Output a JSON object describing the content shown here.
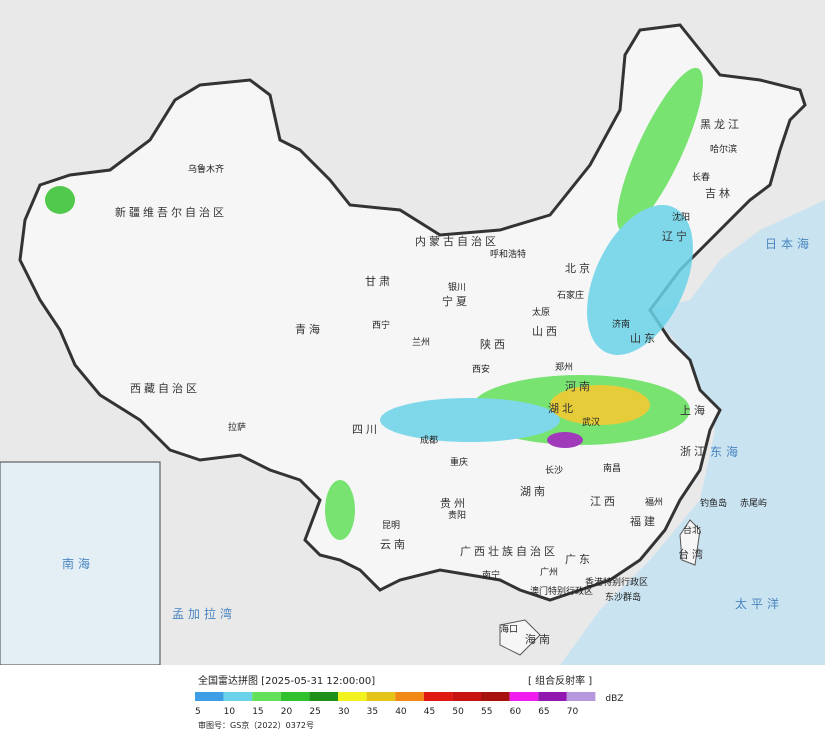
{
  "header": {
    "title": "全国雷达拼图 [2025-05-31 12:00:00]",
    "product": "[ 组合反射率 ]"
  },
  "legend": {
    "unit": "dBZ",
    "ticks": [
      5,
      10,
      15,
      20,
      25,
      30,
      35,
      40,
      45,
      50,
      55,
      60,
      65,
      70
    ],
    "colors": [
      "#3d9ee6",
      "#6ad2e8",
      "#62e05a",
      "#32c12e",
      "#1f8f1c",
      "#f2f21e",
      "#e4c418",
      "#f08a14",
      "#e01a12",
      "#c81410",
      "#a8120e",
      "#f01cf0",
      "#9018b0",
      "#b898dc"
    ]
  },
  "footer": {
    "approval": "审图号：GS京（2022）0372号"
  },
  "map": {
    "labels": [
      "乌鲁木齐",
      "新疆维吾尔自治区",
      "西藏自治区",
      "拉萨",
      "青海",
      "西宁",
      "甘肃",
      "内蒙古自治区",
      "呼和浩特",
      "北京",
      "黑龙江",
      "哈尔滨",
      "吉林",
      "长春",
      "辽宁",
      "沈阳",
      "宁夏",
      "银川",
      "兰州",
      "山西",
      "太原",
      "石家庄",
      "济南",
      "山东",
      "陕西",
      "西安",
      "郑州",
      "河南",
      "四川",
      "成都",
      "重庆",
      "湖北",
      "武汉",
      "上海",
      "浙江",
      "湖南",
      "长沙",
      "南昌",
      "江西",
      "福州",
      "福建",
      "贵州",
      "贵阳",
      "云南",
      "昆明",
      "广西壮族自治区",
      "南宁",
      "广东",
      "广州",
      "香港特别行政区",
      "澳门特别行政区",
      "台湾",
      "台北",
      "海南",
      "海口",
      "日本海",
      "东海",
      "太平洋",
      "孟加拉湾",
      "钓鱼岛",
      "赤尾屿",
      "东沙群岛",
      "南海"
    ]
  }
}
